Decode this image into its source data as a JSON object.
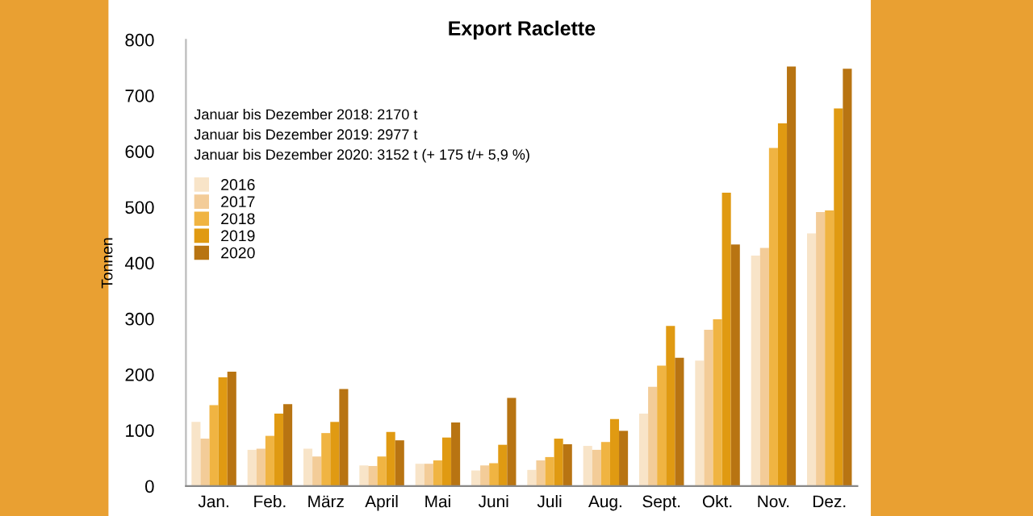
{
  "chart_data": {
    "type": "bar",
    "title": "Export Raclette",
    "ylabel": "Tonnen",
    "annotations": [
      "Januar bis Dezember 2018: 2170 t",
      "Januar bis Dezember 2019: 2977 t",
      "Januar bis Dezember 2020: 3152 t (+ 175 t/+ 5,9 %)"
    ],
    "categories": [
      "Jan.",
      "Feb.",
      "März",
      "April",
      "Mai",
      "Juni",
      "Juli",
      "Aug.",
      "Sept.",
      "Okt.",
      "Nov.",
      "Dez."
    ],
    "series": [
      {
        "name": "2016",
        "color": "#f8e4c8",
        "values": [
          115,
          65,
          67,
          37,
          40,
          28,
          29,
          72,
          130,
          225,
          413,
          453
        ]
      },
      {
        "name": "2017",
        "color": "#f3cc98",
        "values": [
          85,
          67,
          53,
          36,
          40,
          37,
          46,
          65,
          178,
          280,
          427,
          491
        ]
      },
      {
        "name": "2018",
        "color": "#f0b442",
        "values": [
          145,
          90,
          95,
          53,
          46,
          41,
          52,
          79,
          216,
          299,
          606,
          494
        ]
      },
      {
        "name": "2019",
        "color": "#e09a12",
        "values": [
          195,
          130,
          115,
          97,
          87,
          74,
          85,
          120,
          287,
          526,
          650,
          677
        ]
      },
      {
        "name": "2020",
        "color": "#b87412",
        "values": [
          205,
          147,
          174,
          82,
          114,
          158,
          75,
          99,
          230,
          433,
          752,
          748
        ]
      }
    ],
    "ylim": [
      0,
      800
    ],
    "yticks": [
      0,
      100,
      200,
      300,
      400,
      500,
      600,
      700,
      800
    ],
    "grid": false,
    "legend": "top left"
  }
}
